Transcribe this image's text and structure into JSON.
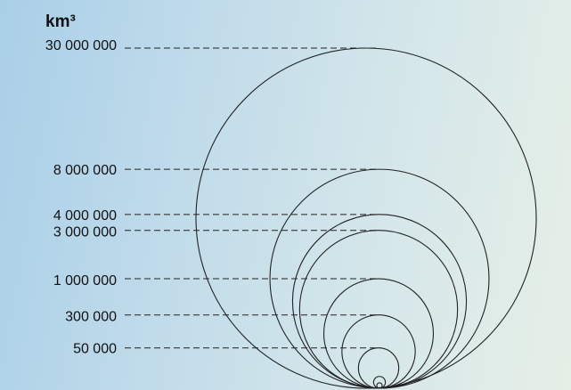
{
  "chart_data": {
    "type": "bubble-volume",
    "unit_label": "km³",
    "levels": [
      {
        "label": "30 000 000",
        "value": 30000000
      },
      {
        "label": "8 000 000",
        "value": 8000000
      },
      {
        "label": "4 000 000",
        "value": 4000000
      },
      {
        "label": "3 000 000",
        "value": 3000000
      },
      {
        "label": "1 000 000",
        "value": 1000000
      },
      {
        "label": "300 000",
        "value": 300000
      },
      {
        "label": "50 000",
        "value": 50000
      }
    ],
    "extra_unlabeled_circles": 2,
    "colors": {
      "stroke": "#222222",
      "text": "#111111"
    }
  }
}
